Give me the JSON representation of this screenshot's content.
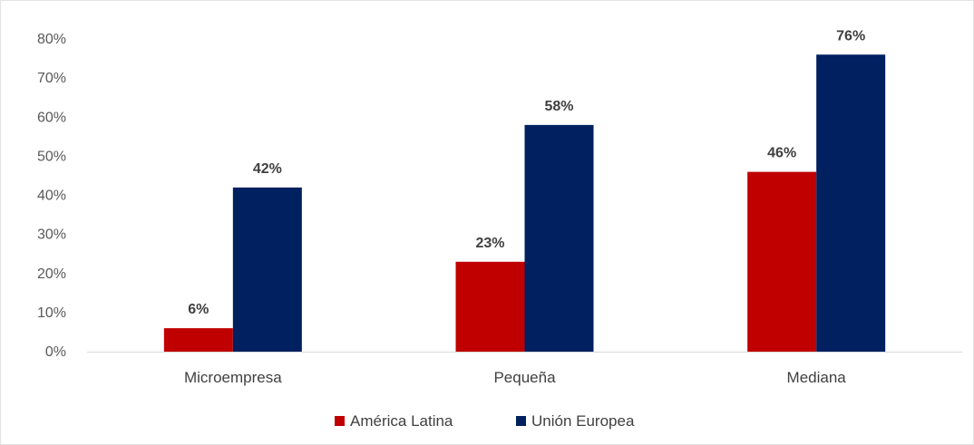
{
  "chart_data": {
    "type": "bar",
    "categories": [
      "Microempresa",
      "Pequeña",
      "Mediana"
    ],
    "series": [
      {
        "name": "América Latina",
        "values": [
          6,
          23,
          46
        ],
        "color": "#c00000",
        "labels": [
          "6%",
          "23%",
          "46%"
        ]
      },
      {
        "name": "Unión Europea",
        "values": [
          42,
          58,
          76
        ],
        "color": "#002060",
        "labels": [
          "42%",
          "58%",
          "76%"
        ]
      }
    ],
    "y_ticks": [
      0,
      10,
      20,
      30,
      40,
      50,
      60,
      70,
      80
    ],
    "y_tick_labels": [
      "0%",
      "10%",
      "20%",
      "30%",
      "40%",
      "50%",
      "60%",
      "70%",
      "80%"
    ],
    "ylim": [
      0,
      80
    ],
    "title": "",
    "xlabel": "",
    "ylabel": "",
    "grid": false,
    "legend_position": "bottom"
  }
}
